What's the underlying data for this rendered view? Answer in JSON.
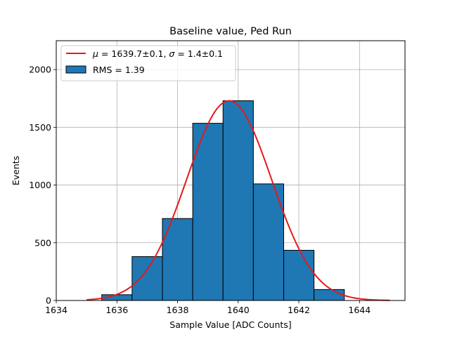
{
  "chart_data": {
    "type": "bar",
    "title": "Baseline value, Ped Run",
    "xlabel": "Sample Value [ADC Counts]",
    "ylabel": "Events",
    "xlim": [
      1634,
      1645.5
    ],
    "ylim": [
      0,
      2250
    ],
    "xticks": [
      1634,
      1636,
      1638,
      1640,
      1642,
      1644
    ],
    "yticks": [
      0,
      500,
      1000,
      1500,
      2000
    ],
    "grid": true,
    "legend_position": "upper-left",
    "histogram": {
      "name": "RMS = 1.39",
      "bin_edges": [
        1635.5,
        1636.5,
        1637.5,
        1638.5,
        1639.5,
        1640.5,
        1641.5,
        1642.5,
        1643.5
      ],
      "counts": [
        50,
        380,
        710,
        1535,
        1730,
        1010,
        435,
        95
      ],
      "color": "#1f77b4",
      "edgecolor": "#000000"
    },
    "fit": {
      "name": "μ = 1639.7±0.1, σ = 1.4±0.1",
      "label_mu": "μ",
      "label_mu_val": " = 1639.7±0.1, ",
      "label_sigma": "σ",
      "label_sigma_val": " = 1.4±0.1",
      "mu": 1639.7,
      "sigma": 1.4,
      "amplitude": 1730,
      "x_range": [
        1635,
        1645
      ],
      "color": "#e41a1c"
    }
  }
}
